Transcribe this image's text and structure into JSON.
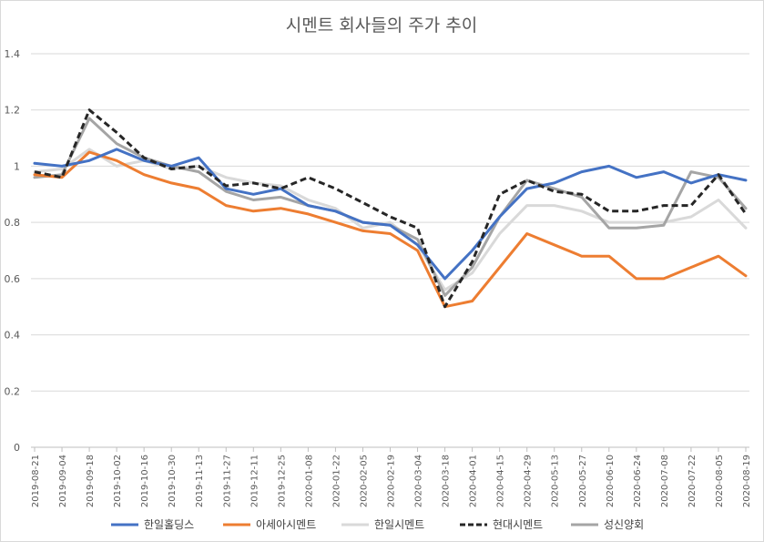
{
  "chart_data": {
    "type": "line",
    "title": "시멘트 회사들의 주가 추이",
    "xlabel": "",
    "ylabel": "",
    "ylim": [
      0,
      1.4
    ],
    "yticks": [
      "0",
      "0.2",
      "0.4",
      "0.6",
      "0.8",
      "1",
      "1.2",
      "1.4"
    ],
    "grid": "horizontal",
    "legend": "bottom",
    "x": [
      "2019-08-21",
      "2019-09-04",
      "2019-09-18",
      "2019-10-02",
      "2019-10-16",
      "2019-10-30",
      "2019-11-13",
      "2019-11-27",
      "2019-12-11",
      "2019-12-25",
      "2020-01-08",
      "2020-01-22",
      "2020-02-05",
      "2020-02-19",
      "2020-03-04",
      "2020-03-18",
      "2020-04-01",
      "2020-04-15",
      "2020-04-29",
      "2020-05-13",
      "2020-05-27",
      "2020-06-10",
      "2020-06-24",
      "2020-07-08",
      "2020-07-22",
      "2020-08-05",
      "2020-08-19"
    ],
    "series": [
      {
        "name": "한일홀딩스",
        "color": "#4472c4",
        "dash": "solid",
        "values": [
          1.01,
          1.0,
          1.02,
          1.06,
          1.02,
          1.0,
          1.03,
          0.92,
          0.9,
          0.92,
          0.86,
          0.84,
          0.8,
          0.79,
          0.72,
          0.6,
          0.7,
          0.82,
          0.92,
          0.94,
          0.98,
          1.0,
          0.96,
          0.98,
          0.94,
          0.97,
          0.95
        ]
      },
      {
        "name": "아세아시멘트",
        "color": "#ed7d31",
        "dash": "solid",
        "values": [
          0.97,
          0.96,
          1.05,
          1.02,
          0.97,
          0.94,
          0.92,
          0.86,
          0.84,
          0.85,
          0.83,
          0.8,
          0.77,
          0.76,
          0.7,
          0.5,
          0.52,
          0.64,
          0.76,
          0.72,
          0.68,
          0.68,
          0.6,
          0.6,
          0.64,
          0.68,
          0.61
        ]
      },
      {
        "name": "한일시멘트",
        "color": "#d9d9d9",
        "dash": "solid",
        "values": [
          0.98,
          0.99,
          1.06,
          1.0,
          1.02,
          0.99,
          1.0,
          0.96,
          0.94,
          0.93,
          0.88,
          0.85,
          0.78,
          0.8,
          0.72,
          0.56,
          0.62,
          0.76,
          0.86,
          0.86,
          0.84,
          0.8,
          0.8,
          0.8,
          0.82,
          0.88,
          0.78
        ]
      },
      {
        "name": "현대시멘트",
        "color": "#262626",
        "dash": "dash",
        "values": [
          0.98,
          0.96,
          1.2,
          1.12,
          1.03,
          0.99,
          1.0,
          0.93,
          0.94,
          0.92,
          0.96,
          0.92,
          0.87,
          0.82,
          0.78,
          0.5,
          0.66,
          0.9,
          0.95,
          0.91,
          0.9,
          0.84,
          0.84,
          0.86,
          0.86,
          0.97,
          0.83
        ]
      },
      {
        "name": "성신양회",
        "color": "#a5a5a5",
        "dash": "solid",
        "values": [
          0.96,
          0.97,
          1.17,
          1.08,
          1.03,
          1.0,
          0.98,
          0.91,
          0.88,
          0.89,
          0.86,
          0.84,
          0.8,
          0.79,
          0.74,
          0.54,
          0.64,
          0.82,
          0.95,
          0.92,
          0.89,
          0.78,
          0.78,
          0.79,
          0.98,
          0.96,
          0.85
        ]
      }
    ]
  }
}
